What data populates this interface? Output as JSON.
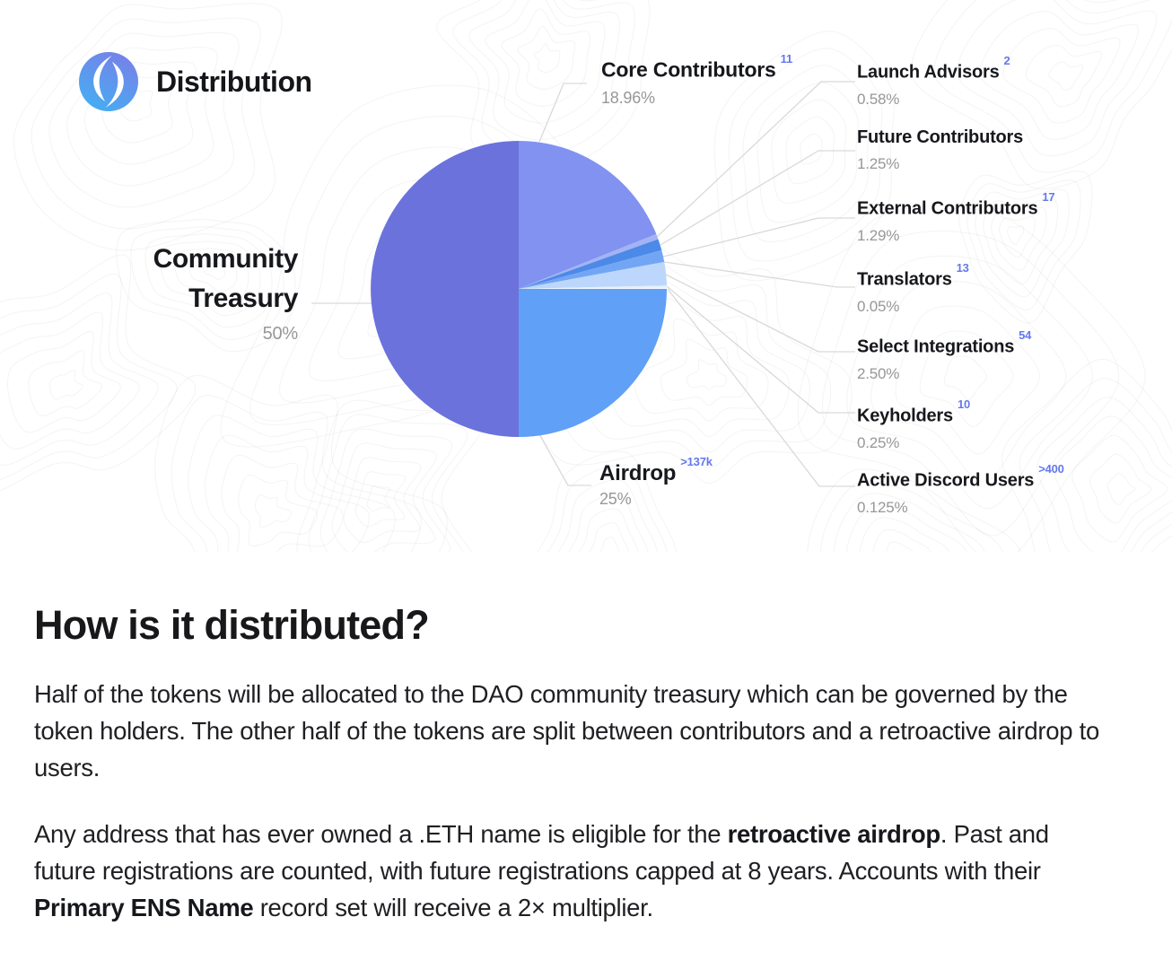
{
  "header": {
    "title": "Distribution",
    "logo": "ens-logo"
  },
  "chart_data": {
    "type": "pie",
    "title": "Distribution",
    "unit": "%",
    "total": 100,
    "start_angle_deg": 0,
    "direction": "clockwise",
    "labels_position": "callouts",
    "slices": [
      {
        "label": "Core Contributors",
        "value": 18.96,
        "display": "18.96%",
        "count": "11",
        "color": "#8192F1"
      },
      {
        "label": "Launch Advisors",
        "value": 0.58,
        "display": "0.58%",
        "count": "2",
        "color": "#A3B3F3"
      },
      {
        "label": "Future Contributors",
        "value": 1.25,
        "display": "1.25%",
        "count": null,
        "color": "#4D89E8"
      },
      {
        "label": "External Contributors",
        "value": 1.29,
        "display": "1.29%",
        "count": "17",
        "color": "#72A6F4"
      },
      {
        "label": "Translators",
        "value": 0.05,
        "display": "0.05%",
        "count": "13",
        "color": "#9CC4F8"
      },
      {
        "label": "Select Integrations",
        "value": 2.5,
        "display": "2.50%",
        "count": "54",
        "color": "#BCD7FB"
      },
      {
        "label": "Keyholders",
        "value": 0.25,
        "display": "0.25%",
        "count": "10",
        "color": "#E3EFFD"
      },
      {
        "label": "Active Discord Users",
        "value": 0.125,
        "display": "0.125%",
        "count": ">400",
        "color": "#F4F9FF"
      },
      {
        "label": "Airdrop",
        "value": 25,
        "display": "25%",
        "count": ">137k",
        "color": "#60A0F6"
      },
      {
        "label": "Community Treasury",
        "value": 50,
        "display": "50%",
        "count": null,
        "color": "#6B72DC"
      }
    ]
  },
  "section": {
    "heading": "How is it distributed?",
    "paragraph1": "Half of the tokens will be allocated to the DAO community treasury which can be governed by the token holders. The other half of the tokens are split between contributors and a retroactive airdrop to users.",
    "p2": {
      "a": "Any address that has ever owned a .ETH name is eligible for the ",
      "b": "retroactive airdrop",
      "c": ". Past and future registrations are counted, with future registrations capped at 8 years. Accounts with their ",
      "d": "Primary ENS Name",
      "e": " record set will receive a 2× multiplier."
    }
  },
  "colors": {
    "superscript_accent": "#6478EE",
    "percent_text": "#97979B",
    "leader_line": "#D9D9D9",
    "heading_text": "#18181B",
    "logo_gradient_top": "#7880E8",
    "logo_gradient_bottom": "#45AEF2"
  }
}
